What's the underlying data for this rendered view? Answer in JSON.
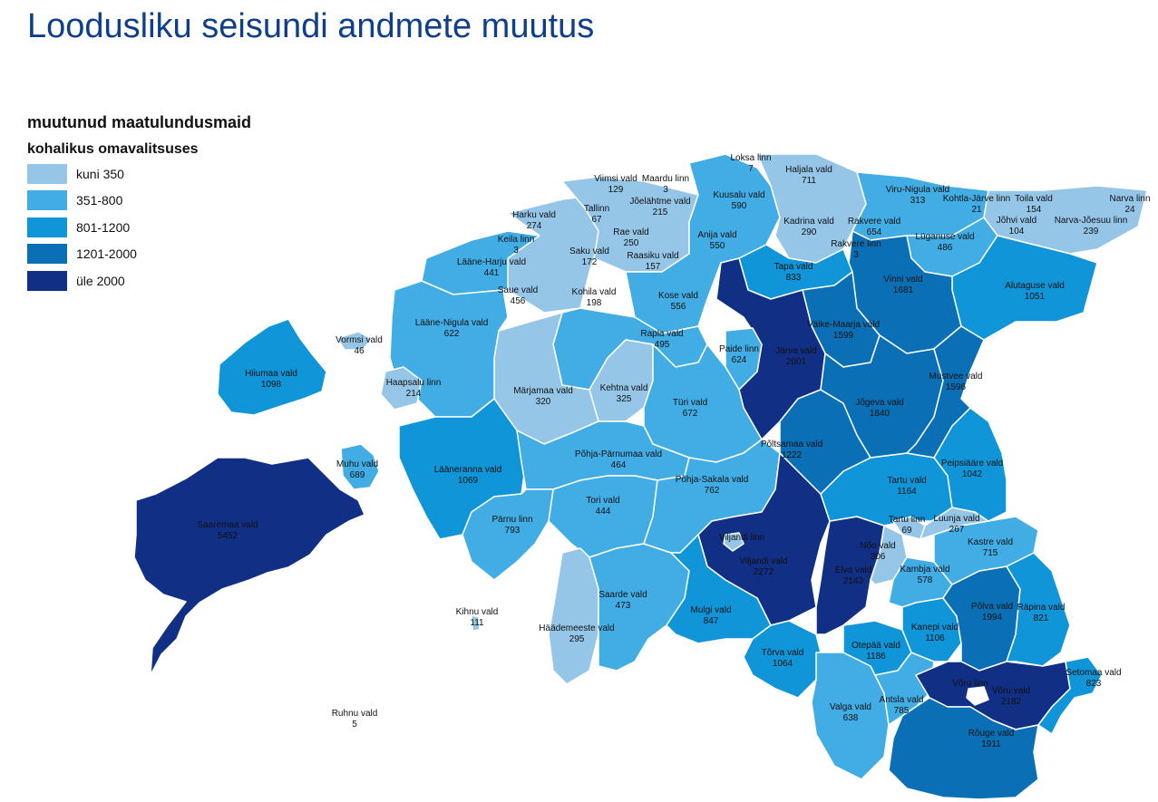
{
  "title": "Loodusliku seisundi andmete muutus",
  "legend": {
    "title_line1": "muutunud maatulundusmaid",
    "title_line2": "kohalikus omavalitsuses",
    "items": [
      {
        "label": "kuni 350",
        "color": "#95c6e8"
      },
      {
        "label": "351-800",
        "color": "#41ade4"
      },
      {
        "label": "801-1200",
        "color": "#0f95d8"
      },
      {
        "label": "1201-2000",
        "color": "#0a6fb5"
      },
      {
        "label": "üle 2000",
        "color": "#112f84"
      }
    ]
  },
  "municipalities": [
    {
      "name": "Loksa linn",
      "value": "7",
      "cls": 0
    },
    {
      "name": "Haljala vald",
      "value": "711",
      "cls": 1
    },
    {
      "name": "Viimsi vald",
      "value": "129",
      "cls": 0
    },
    {
      "name": "Maardu linn",
      "value": "3",
      "cls": 0
    },
    {
      "name": "Jõelähtme vald",
      "value": "215",
      "cls": 0
    },
    {
      "name": "Kuusalu vald",
      "value": "590",
      "cls": 1
    },
    {
      "name": "Viru-Nigula vald",
      "value": "313",
      "cls": 0
    },
    {
      "name": "Kohtla-Järve linn",
      "value": "21",
      "cls": 0
    },
    {
      "name": "Toila vald",
      "value": "154",
      "cls": 0
    },
    {
      "name": "Narva linn",
      "value": "24",
      "cls": 0
    },
    {
      "name": "Harku vald",
      "value": "274",
      "cls": 0
    },
    {
      "name": "Tallinn",
      "value": "67",
      "cls": 0
    },
    {
      "name": "Keila linn",
      "value": "3",
      "cls": 0
    },
    {
      "name": "Rae vald",
      "value": "250",
      "cls": 0
    },
    {
      "name": "Kadrina vald",
      "value": "290",
      "cls": 0
    },
    {
      "name": "Rakvere vald",
      "value": "654",
      "cls": 1
    },
    {
      "name": "Jõhvi vald",
      "value": "104",
      "cls": 0
    },
    {
      "name": "Narva-Jõesuu linn",
      "value": "239",
      "cls": 0
    },
    {
      "name": "Saku vald",
      "value": "172",
      "cls": 0
    },
    {
      "name": "Raasiku vald",
      "value": "157",
      "cls": 0
    },
    {
      "name": "Anija vald",
      "value": "550",
      "cls": 1
    },
    {
      "name": "Rakvere linn",
      "value": "3",
      "cls": 0
    },
    {
      "name": "Lüganuse vald",
      "value": "486",
      "cls": 1
    },
    {
      "name": "Lääne-Harju vald",
      "value": "441",
      "cls": 1
    },
    {
      "name": "Tapa vald",
      "value": "833",
      "cls": 2
    },
    {
      "name": "Saue vald",
      "value": "456",
      "cls": 1
    },
    {
      "name": "Kohila vald",
      "value": "198",
      "cls": 0
    },
    {
      "name": "Kose vald",
      "value": "556",
      "cls": 1
    },
    {
      "name": "Vinni vald",
      "value": "1681",
      "cls": 3
    },
    {
      "name": "Alutaguse vald",
      "value": "1051",
      "cls": 2
    },
    {
      "name": "Lääne-Nigula vald",
      "value": "622",
      "cls": 1
    },
    {
      "name": "Väike-Maarja vald",
      "value": "1599",
      "cls": 3
    },
    {
      "name": "Vormsi vald",
      "value": "46",
      "cls": 0
    },
    {
      "name": "Rapla vald",
      "value": "495",
      "cls": 1
    },
    {
      "name": "Paide linn",
      "value": "624",
      "cls": 1
    },
    {
      "name": "Järva vald",
      "value": "2001",
      "cls": 4
    },
    {
      "name": "Hiiumaa vald",
      "value": "1098",
      "cls": 2
    },
    {
      "name": "Haapsalu linn",
      "value": "214",
      "cls": 0
    },
    {
      "name": "Mustvee vald",
      "value": "1596",
      "cls": 3
    },
    {
      "name": "Märjamaa vald",
      "value": "320",
      "cls": 0
    },
    {
      "name": "Kehtna vald",
      "value": "325",
      "cls": 0
    },
    {
      "name": "Türi vald",
      "value": "672",
      "cls": 1
    },
    {
      "name": "Jõgeva vald",
      "value": "1840",
      "cls": 3
    },
    {
      "name": "Põhja-Pärnumaa vald",
      "value": "464",
      "cls": 1
    },
    {
      "name": "Põltsamaa vald",
      "value": "1222",
      "cls": 3
    },
    {
      "name": "Muhu vald",
      "value": "689",
      "cls": 1
    },
    {
      "name": "Peipsiääre vald",
      "value": "1042",
      "cls": 2
    },
    {
      "name": "Lääneranna vald",
      "value": "1069",
      "cls": 2
    },
    {
      "name": "Põhja-Sakala vald",
      "value": "762",
      "cls": 1
    },
    {
      "name": "Tartu vald",
      "value": "1164",
      "cls": 2
    },
    {
      "name": "Tori vald",
      "value": "444",
      "cls": 1
    },
    {
      "name": "Saaremaa vald",
      "value": "5452",
      "cls": 4
    },
    {
      "name": "Pärnu linn",
      "value": "793",
      "cls": 1
    },
    {
      "name": "Tartu linn",
      "value": "69",
      "cls": 0
    },
    {
      "name": "Luunja vald",
      "value": "267",
      "cls": 0
    },
    {
      "name": "Viljandi linn",
      "value": "",
      "cls": 0
    },
    {
      "name": "Nõo vald",
      "value": "306",
      "cls": 0
    },
    {
      "name": "Kastre vald",
      "value": "715",
      "cls": 1
    },
    {
      "name": "Viljandi vald",
      "value": "2272",
      "cls": 4
    },
    {
      "name": "Elva vald",
      "value": "2143",
      "cls": 4
    },
    {
      "name": "Kambja vald",
      "value": "578",
      "cls": 1
    },
    {
      "name": "Saarde vald",
      "value": "473",
      "cls": 1
    },
    {
      "name": "Põlva vald",
      "value": "1994",
      "cls": 3
    },
    {
      "name": "Räpina vald",
      "value": "821",
      "cls": 2
    },
    {
      "name": "Kihnu vald",
      "value": "111",
      "cls": 0
    },
    {
      "name": "Mulgi vald",
      "value": "847",
      "cls": 2
    },
    {
      "name": "Kanepi vald",
      "value": "1106",
      "cls": 2
    },
    {
      "name": "Häädemeeste vald",
      "value": "295",
      "cls": 0
    },
    {
      "name": "Otepää vald",
      "value": "1186",
      "cls": 2
    },
    {
      "name": "Tõrva vald",
      "value": "1064",
      "cls": 2
    },
    {
      "name": "Setomaa vald",
      "value": "823",
      "cls": 2
    },
    {
      "name": "Võru linn",
      "value": "",
      "cls": 0
    },
    {
      "name": "Võru vald",
      "value": "2182",
      "cls": 4
    },
    {
      "name": "Antsla vald",
      "value": "785",
      "cls": 1
    },
    {
      "name": "Valga vald",
      "value": "638",
      "cls": 1
    },
    {
      "name": "Ruhnu vald",
      "value": "5",
      "cls": 0
    },
    {
      "name": "Rõuge vald",
      "value": "1911",
      "cls": 3
    }
  ]
}
